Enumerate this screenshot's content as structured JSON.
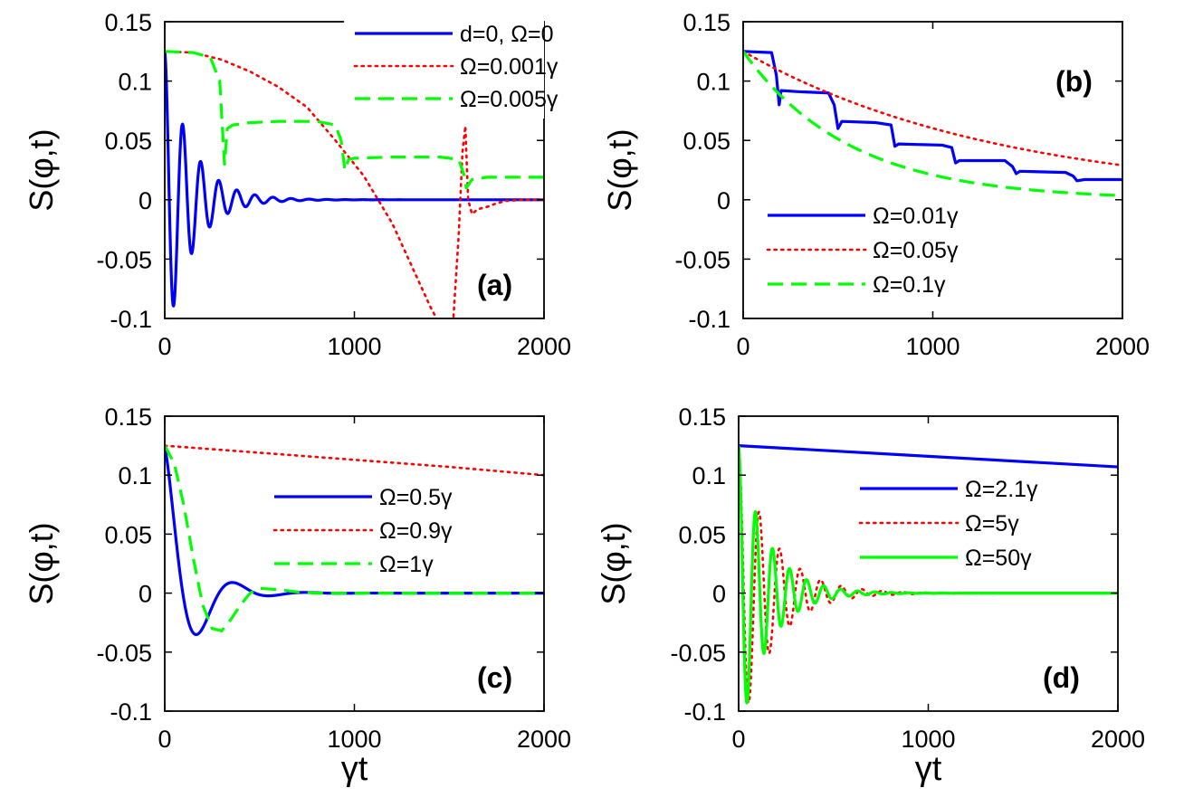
{
  "x_label": "γt",
  "y_label": "S(φ,t)",
  "colors": {
    "blue": "#0000ff",
    "red": "#ff0000",
    "green": "#00ff00",
    "axis": "#000000"
  },
  "chart_data": [
    {
      "type": "line",
      "id": "a",
      "panel_label": "(a)",
      "xlim": [
        0,
        2000
      ],
      "ylim": [
        -0.1,
        0.15
      ],
      "xticks": [
        "0",
        "1000",
        "2000"
      ],
      "yticks": [
        "-0.1",
        "-0.05",
        "0",
        "0.05",
        "0.1",
        "0.15"
      ],
      "legend_position": "top-right",
      "series": [
        {
          "name": "d=0, Ω=0",
          "color": "blue",
          "style": "solid",
          "model": {
            "kind": "damped",
            "y0": 0.125,
            "omega": 0.066,
            "tau": 140,
            "offset": 0
          }
        },
        {
          "name": "Ω=0.001γ",
          "color": "red",
          "style": "dotted",
          "points": [
            [
              0,
              0.125
            ],
            [
              150,
              0.124
            ],
            [
              300,
              0.118
            ],
            [
              450,
              0.108
            ],
            [
              600,
              0.095
            ],
            [
              750,
              0.078
            ],
            [
              900,
              0.05
            ],
            [
              1050,
              0.02
            ],
            [
              1200,
              -0.02
            ],
            [
              1300,
              -0.055
            ],
            [
              1400,
              -0.09
            ],
            [
              1450,
              -0.105
            ],
            [
              1520,
              -0.105
            ],
            [
              1550,
              -0.03
            ],
            [
              1570,
              0.04
            ],
            [
              1585,
              0.062
            ],
            [
              1600,
              0.0
            ],
            [
              1620,
              -0.012
            ],
            [
              1650,
              -0.008
            ],
            [
              1700,
              -0.006
            ],
            [
              1750,
              -0.003
            ],
            [
              1800,
              -0.001
            ],
            [
              1900,
              0.0
            ],
            [
              2000,
              0.0
            ]
          ]
        },
        {
          "name": "Ω=0.005γ",
          "color": "green",
          "style": "dashed",
          "points": [
            [
              0,
              0.125
            ],
            [
              150,
              0.124
            ],
            [
              240,
              0.12
            ],
            [
              290,
              0.1
            ],
            [
              315,
              0.03
            ],
            [
              330,
              0.06
            ],
            [
              360,
              0.063
            ],
            [
              450,
              0.065
            ],
            [
              600,
              0.066
            ],
            [
              800,
              0.066
            ],
            [
              900,
              0.063
            ],
            [
              930,
              0.05
            ],
            [
              950,
              0.025
            ],
            [
              970,
              0.034
            ],
            [
              1000,
              0.035
            ],
            [
              1200,
              0.036
            ],
            [
              1450,
              0.036
            ],
            [
              1550,
              0.034
            ],
            [
              1580,
              0.02
            ],
            [
              1590,
              0.01
            ],
            [
              1620,
              0.017
            ],
            [
              1700,
              0.019
            ],
            [
              2000,
              0.019
            ]
          ]
        }
      ]
    },
    {
      "type": "line",
      "id": "b",
      "panel_label": "(b)",
      "xlim": [
        0,
        2000
      ],
      "ylim": [
        -0.1,
        0.15
      ],
      "xticks": [
        "0",
        "1000",
        "2000"
      ],
      "yticks": [
        "-0.1",
        "-0.05",
        "0",
        "0.05",
        "0.1",
        "0.15"
      ],
      "legend_position": "bottom-left",
      "series": [
        {
          "name": "Ω=0.01γ",
          "color": "blue",
          "style": "solid",
          "points": [
            [
              0,
              0.125
            ],
            [
              150,
              0.124
            ],
            [
              175,
              0.105
            ],
            [
              190,
              0.08
            ],
            [
              200,
              0.092
            ],
            [
              300,
              0.091
            ],
            [
              450,
              0.09
            ],
            [
              480,
              0.08
            ],
            [
              500,
              0.06
            ],
            [
              520,
              0.066
            ],
            [
              700,
              0.065
            ],
            [
              780,
              0.063
            ],
            [
              800,
              0.045
            ],
            [
              820,
              0.047
            ],
            [
              1050,
              0.046
            ],
            [
              1100,
              0.044
            ],
            [
              1120,
              0.031
            ],
            [
              1140,
              0.033
            ],
            [
              1380,
              0.033
            ],
            [
              1420,
              0.028
            ],
            [
              1440,
              0.022
            ],
            [
              1460,
              0.024
            ],
            [
              1700,
              0.023
            ],
            [
              1740,
              0.02
            ],
            [
              1760,
              0.016
            ],
            [
              1800,
              0.017
            ],
            [
              2000,
              0.017
            ]
          ]
        },
        {
          "name": "Ω=0.05γ",
          "color": "red",
          "style": "dotted",
          "model": {
            "kind": "exp",
            "y0": 0.125,
            "tau": 1370,
            "offset": 0
          }
        },
        {
          "name": "Ω=0.1γ",
          "color": "green",
          "style": "dashed",
          "model": {
            "kind": "exp",
            "y0": 0.125,
            "tau": 560,
            "offset": 0
          }
        }
      ]
    },
    {
      "type": "line",
      "id": "c",
      "panel_label": "(c)",
      "xlim": [
        0,
        2000
      ],
      "ylim": [
        -0.1,
        0.15
      ],
      "xticks": [
        "0",
        "1000",
        "2000"
      ],
      "yticks": [
        "-0.1",
        "-0.05",
        "0",
        "0.05",
        "0.1",
        "0.15"
      ],
      "legend_position": "center-right",
      "series": [
        {
          "name": "Ω=0.5γ",
          "color": "blue",
          "style": "solid",
          "model": {
            "kind": "damped",
            "y0": 0.125,
            "omega": 0.0165,
            "tau": 140,
            "offset": 0
          }
        },
        {
          "name": "Ω=0.9γ",
          "color": "red",
          "style": "dotted",
          "points": [
            [
              0,
              0.125
            ],
            [
              500,
              0.119
            ],
            [
              1000,
              0.113
            ],
            [
              1500,
              0.107
            ],
            [
              2000,
              0.1
            ]
          ]
        },
        {
          "name": "Ω=1γ",
          "color": "green",
          "style": "dashed",
          "points": [
            [
              0,
              0.125
            ],
            [
              50,
              0.11
            ],
            [
              100,
              0.075
            ],
            [
              150,
              0.03
            ],
            [
              200,
              -0.01
            ],
            [
              250,
              -0.03
            ],
            [
              300,
              -0.032
            ],
            [
              350,
              -0.022
            ],
            [
              400,
              -0.01
            ],
            [
              450,
              0.0
            ],
            [
              500,
              0.004
            ],
            [
              600,
              0.003
            ],
            [
              700,
              0.001
            ],
            [
              800,
              0.0
            ],
            [
              2000,
              0.0
            ]
          ]
        }
      ]
    },
    {
      "type": "line",
      "id": "d",
      "panel_label": "(d)",
      "xlim": [
        0,
        2000
      ],
      "ylim": [
        -0.1,
        0.15
      ],
      "xticks": [
        "0",
        "1000",
        "2000"
      ],
      "yticks": [
        "-0.1",
        "-0.05",
        "0",
        "0.05",
        "0.1",
        "0.15"
      ],
      "legend_position": "center-right",
      "series": [
        {
          "name": "Ω=2.1γ",
          "color": "blue",
          "style": "solid",
          "points": [
            [
              0,
              0.125
            ],
            [
              1000,
              0.116
            ],
            [
              2000,
              0.107
            ]
          ]
        },
        {
          "name": "Ω=5γ",
          "color": "red",
          "style": "dotted",
          "model": {
            "kind": "damped",
            "y0": 0.125,
            "omega": 0.058,
            "tau": 180,
            "offset": 0
          }
        },
        {
          "name": "Ω=50γ",
          "color": "green",
          "style": "solid",
          "model": {
            "kind": "damped",
            "y0": 0.125,
            "omega": 0.07,
            "tau": 150,
            "offset": 0
          }
        }
      ]
    }
  ]
}
